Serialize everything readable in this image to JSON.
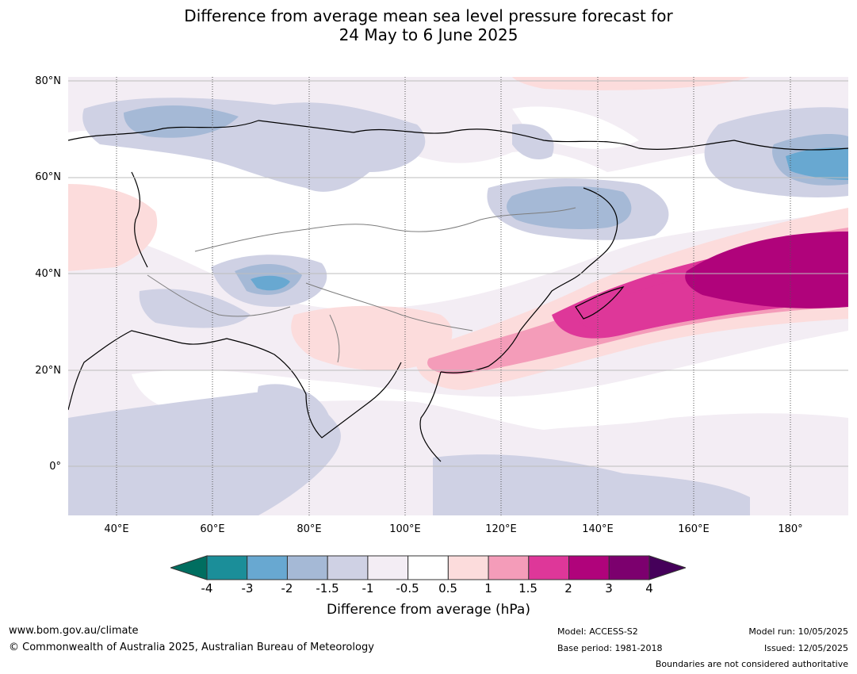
{
  "title": {
    "line1": "Difference from average mean sea level pressure forecast for",
    "line2": "24 May to 6 June 2025"
  },
  "map": {
    "lat_labels": [
      "80°N",
      "60°N",
      "40°N",
      "20°N",
      "0°"
    ],
    "lon_labels": [
      "40°E",
      "60°E",
      "80°E",
      "100°E",
      "120°E",
      "140°E",
      "160°E",
      "180°"
    ],
    "extent": {
      "lon_min": 30,
      "lon_max": 192,
      "lat_min": -10,
      "lat_max": 81
    }
  },
  "colorbar": {
    "label": "Difference from average (hPa)",
    "ticks": [
      "-4",
      "-3",
      "-2",
      "-1.5",
      "-1",
      "-0.5",
      "0.5",
      "1",
      "1.5",
      "2",
      "3",
      "4"
    ],
    "colors": [
      "#1b8e99",
      "#68a8d1",
      "#a5b9d6",
      "#cfd1e4",
      "#f3edf4",
      "#ffffff",
      "#fcdcdc",
      "#f49cb9",
      "#de3799",
      "#b0037b",
      "#7c006e"
    ],
    "under_color": "#006e60",
    "over_color": "#45005a"
  },
  "footer": {
    "website": "www.bom.gov.au/climate",
    "copyright": "© Commonwealth of Australia 2025, Australian Bureau of Meteorology",
    "model": "Model: ACCESS-S2",
    "base_period": "Base period: 1981-2018",
    "model_run": "Model run: 10/05/2025",
    "issued": "Issued: 12/05/2025",
    "disclaimer": "Boundaries are not considered authoritative"
  }
}
